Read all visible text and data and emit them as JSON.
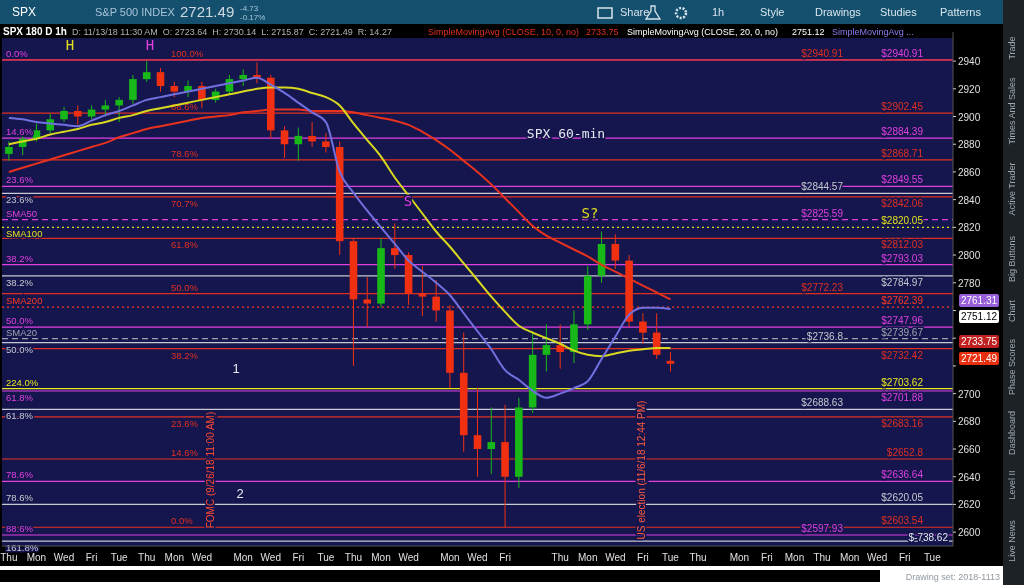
{
  "chart_data": {
    "type": "candlestick",
    "title": "SPX 180 D 1h",
    "subtitle": "D: 11/13/18 11:30 AM  O: 2723.64  H: 2730.14  L: 2715.87  C: 2721.49  R: 14.27",
    "categories": [
      "Thu",
      null,
      "Mon",
      null,
      "Wed",
      null,
      "Fri",
      null,
      "Tue",
      null,
      "Thu",
      null,
      "Mon",
      null,
      "Wed",
      null,
      null,
      "Mon",
      null,
      "Wed",
      null,
      "Fri",
      null,
      "Tue",
      null,
      "Thu",
      null,
      "Mon",
      null,
      "Wed",
      null,
      null,
      "Mon",
      null,
      "Wed",
      null,
      "Fri",
      null,
      null,
      null,
      "Thu",
      null,
      "Mon",
      null,
      "Wed",
      null,
      "Fri",
      null,
      "Tue",
      null,
      "Thu",
      null,
      null,
      "Mon",
      null,
      "Fri",
      null,
      "Mon",
      null,
      "Thu",
      null,
      "Mon",
      null,
      "Wed",
      null,
      "Fri",
      null,
      "Tue",
      null
    ],
    "ohlc": [
      [
        2873,
        2882,
        2868,
        2878
      ],
      [
        2878,
        2886,
        2872,
        2884
      ],
      [
        2884,
        2895,
        2882,
        2890
      ],
      [
        2890,
        2902,
        2888,
        2898
      ],
      [
        2898,
        2907,
        2896,
        2904
      ],
      [
        2904,
        2908,
        2894,
        2900
      ],
      [
        2900,
        2908,
        2898,
        2905
      ],
      [
        2905,
        2912,
        2900,
        2908
      ],
      [
        2908,
        2914,
        2896,
        2912
      ],
      [
        2912,
        2930,
        2909,
        2927
      ],
      [
        2927,
        2940,
        2925,
        2932
      ],
      [
        2932,
        2935,
        2918,
        2922
      ],
      [
        2922,
        2925,
        2914,
        2918
      ],
      [
        2918,
        2926,
        2914,
        2922
      ],
      [
        2922,
        2925,
        2906,
        2912
      ],
      [
        2912,
        2920,
        2910,
        2918
      ],
      [
        2918,
        2930,
        2916,
        2927
      ],
      [
        2927,
        2934,
        2922,
        2930
      ],
      [
        2930,
        2939,
        2924,
        2928
      ],
      [
        2928,
        2930,
        2884,
        2890
      ],
      [
        2890,
        2893,
        2870,
        2880
      ],
      [
        2880,
        2892,
        2868,
        2886
      ],
      [
        2886,
        2896,
        2878,
        2882
      ],
      [
        2882,
        2888,
        2874,
        2878
      ],
      [
        2878,
        2882,
        2800,
        2810
      ],
      [
        2810,
        2812,
        2720,
        2768
      ],
      [
        2768,
        2784,
        2748,
        2765
      ],
      [
        2765,
        2812,
        2762,
        2805
      ],
      [
        2805,
        2823,
        2790,
        2800
      ],
      [
        2800,
        2802,
        2764,
        2772
      ],
      [
        2772,
        2792,
        2756,
        2770
      ],
      [
        2770,
        2782,
        2752,
        2760
      ],
      [
        2760,
        2764,
        2704,
        2715
      ],
      [
        2715,
        2744,
        2658,
        2670
      ],
      [
        2670,
        2704,
        2640,
        2660
      ],
      [
        2660,
        2690,
        2642,
        2665
      ],
      [
        2665,
        2692,
        2603.5,
        2640
      ],
      [
        2640,
        2697,
        2632,
        2690
      ],
      [
        2690,
        2745,
        2686,
        2728
      ],
      [
        2728,
        2750,
        2716,
        2735
      ],
      [
        2735,
        2750,
        2718,
        2730
      ],
      [
        2730,
        2760,
        2722,
        2750
      ],
      [
        2750,
        2792,
        2746,
        2785
      ],
      [
        2785,
        2817,
        2780,
        2808
      ],
      [
        2808,
        2815,
        2790,
        2796
      ],
      [
        2796,
        2800,
        2748,
        2752
      ],
      [
        2752,
        2758,
        2736,
        2744
      ],
      [
        2744,
        2758,
        2725,
        2728
      ],
      [
        2723.64,
        2730.14,
        2715.87,
        2721.49
      ],
      null,
      null,
      null,
      null,
      null,
      null,
      null,
      null,
      null,
      null,
      null,
      null,
      null,
      null,
      null,
      null,
      null,
      null,
      null,
      null
    ],
    "series": [
      {
        "type": "line",
        "color": "#e8321e",
        "values": [
          2860,
          2863,
          2866,
          2869,
          2872,
          2875,
          2878,
          2881,
          2885,
          2888,
          2891,
          2893,
          2895,
          2897,
          2899,
          2900,
          2901,
          2903,
          2904,
          2905,
          2905,
          2905,
          2904,
          2904,
          2904,
          2903,
          2901,
          2899,
          2897,
          2894,
          2889,
          2883,
          2876,
          2868,
          2860,
          2851,
          2841,
          2831,
          2821,
          2814,
          2809,
          2804,
          2799,
          2793,
          2788,
          2783,
          2778,
          2773,
          2768,
          null,
          null,
          null,
          null,
          null,
          null,
          null,
          null,
          null,
          null,
          null,
          null,
          null,
          null,
          null,
          null,
          null,
          null,
          null,
          null
        ]
      },
      {
        "type": "line",
        "color": "#d8d820",
        "values": [
          2880,
          2882,
          2884,
          2887,
          2889,
          2891,
          2894,
          2896,
          2899,
          2901,
          2904,
          2906,
          2908,
          2910,
          2912,
          2914,
          2916,
          2918,
          2920,
          2921,
          2921,
          2920,
          2917,
          2914,
          2908,
          2895,
          2883,
          2871,
          2856,
          2843,
          2830,
          2817,
          2806,
          2794,
          2782,
          2770,
          2759,
          2749,
          2744,
          2740,
          2736,
          2731,
          2728,
          2727,
          2729,
          2731,
          2732,
          2733,
          2733,
          null,
          null,
          null,
          null,
          null,
          null,
          null,
          null,
          null,
          null,
          null,
          null,
          null,
          null,
          null,
          null,
          null,
          null,
          null,
          null
        ]
      },
      {
        "type": "line",
        "color": "#7070e0",
        "values": [
          2899,
          2898,
          2896,
          2895,
          2894,
          2893,
          2897,
          2901,
          2904,
          2908,
          2912,
          2914,
          2916,
          2918,
          2920,
          2922,
          2924,
          2926,
          2928,
          2923,
          2917,
          2910,
          2903,
          2896,
          2860,
          2845,
          2832,
          2820,
          2808,
          2796,
          2788,
          2780,
          2771,
          2758,
          2745,
          2732,
          2717,
          2710,
          2702,
          2697,
          2700,
          2704,
          2709,
          2725,
          2741,
          2757,
          2762,
          2762,
          2761,
          null,
          null,
          null,
          null,
          null,
          null,
          null,
          null,
          null,
          null,
          null,
          null,
          null,
          null,
          null,
          null,
          null,
          null,
          null,
          null
        ]
      }
    ],
    "ylim": [
      2590,
      2961
    ],
    "yticks": [
      2600,
      2620,
      2640,
      2660,
      2680,
      2700,
      {
        "value": 2720,
        "label": null
      },
      {
        "value": 2740,
        "label": null
      },
      {
        "value": 2760,
        "label": null
      },
      2780,
      2800,
      2820,
      2840,
      2860,
      2880,
      2900,
      2920,
      2940
    ],
    "grid": false,
    "ref_lines": [
      {
        "axis": "y",
        "value": 2940.91,
        "label": "$2940.91",
        "color": "#e040e0"
      },
      {
        "axis": "y",
        "value": 2940.91,
        "label": "$2940.91",
        "color": "#e03020"
      },
      {
        "axis": "y",
        "value": 2902.45,
        "label": "$2902.45",
        "color": "#e03020"
      },
      {
        "axis": "y",
        "value": 2884.39,
        "label": "$2884.39",
        "color": "#e040e0"
      },
      {
        "axis": "y",
        "value": 2868.71,
        "label": "$2868.71",
        "color": "#e03020"
      },
      {
        "axis": "y",
        "value": 2849.55,
        "label": "$2849.55",
        "color": "#e040e0"
      },
      {
        "axis": "y",
        "value": 2844.57,
        "label": "$2844.57",
        "color": "#c8c8d0"
      },
      {
        "axis": "y",
        "value": 2842.06,
        "label": "$2842.06",
        "color": "#e03020"
      },
      {
        "axis": "y",
        "value": 2825.59,
        "label": "$2825.59",
        "color": "#e040e0",
        "line_style": "dashed"
      },
      {
        "axis": "y",
        "value": 2820.05,
        "label": "$2820.05",
        "color": "#e0e020",
        "line_style": "dotted"
      },
      {
        "axis": "y",
        "value": 2812.03,
        "label": "$2812.03",
        "color": "#e03020"
      },
      {
        "axis": "y",
        "value": 2793.03,
        "label": "$2793.03",
        "color": "#e040e0"
      },
      {
        "axis": "y",
        "value": 2784.97,
        "label": "$2784.97",
        "color": "#c8c8d0"
      },
      {
        "axis": "y",
        "value": 2772.23,
        "label": "$2772.23",
        "color": "#e03020"
      },
      {
        "axis": "y",
        "value": 2762.39,
        "label": "$2762.39",
        "color": "#ff3a20",
        "line_style": "dotted"
      },
      {
        "axis": "y",
        "value": 2747.96,
        "label": "$2747.96",
        "color": "#e040e0"
      },
      {
        "axis": "y",
        "value": 2739.67,
        "label": "$2739.67",
        "color": "#a0a0b0",
        "line_style": "dashed"
      },
      {
        "axis": "y",
        "value": 2736.8,
        "label": "$2736.8",
        "color": "#c8c8d0"
      },
      {
        "axis": "y",
        "value": 2732.42,
        "label": "$2732.42",
        "color": "#e03020"
      },
      {
        "axis": "y",
        "value": 2703.62,
        "label": "$2703.62",
        "color": "#e8e820"
      },
      {
        "axis": "y",
        "value": 2701.88,
        "label": "$2701.88",
        "color": "#e040e0"
      },
      {
        "axis": "y",
        "value": 2688.63,
        "label": "$2688.63",
        "color": "#c8c8d0"
      },
      {
        "axis": "y",
        "value": 2683.16,
        "label": "$2683.16",
        "color": "#e03020"
      },
      {
        "axis": "y",
        "value": 2652.8,
        "label": "$2652.8",
        "color": "#e03020"
      },
      {
        "axis": "y",
        "value": 2636.64,
        "label": "$2636.64",
        "color": "#e040e0"
      },
      {
        "axis": "y",
        "value": 2620.05,
        "label": "$2620.05",
        "color": "#c8c8d0"
      },
      {
        "axis": "y",
        "value": 2603.54,
        "label": "$2603.54",
        "color": "#e03020"
      },
      {
        "axis": "y",
        "value": 2597.93,
        "label": "$2597.93",
        "color": "#e040e0"
      },
      {
        "axis": "y",
        "value": 2593.5,
        "color": "#c8c8d0"
      }
    ],
    "annotations": [
      "SPX",
      "S&P 500 INDEX",
      "2721.49",
      "-4.73",
      "-0.17%",
      "Share",
      "1h",
      "Style",
      "Drawings",
      "Studies",
      "Patterns",
      "SimpleMovingAvg (CLOSE, 10, 0, no)",
      "2733.75",
      "SimpleMovingAvg (CLOSE, 20, 0, no)",
      "2751.12",
      "SimpleMovingAvg ...",
      "Trade",
      "Times And Sales",
      "Active Trader",
      "Big Buttons",
      "Chart",
      "Phase Scores",
      "Dashboard",
      "Level II",
      "Live News",
      "Drawing set: 2018-1113",
      "2761.31",
      "2751.12",
      "2733.75",
      "2721.49",
      "$-738.62",
      "H",
      "H",
      "S",
      "S?",
      "1",
      "2",
      "SPX 60-min",
      "FOMC (9/26/18 11:00 AM)",
      "US election (11/6/18 12:44 PM)",
      {
        "text": "0.0%",
        "y": 2940.91
      },
      {
        "text": "14.6%",
        "y": 2884.39
      },
      {
        "text": "23.6%",
        "y": 2849.55
      },
      {
        "text": "23.6%",
        "y": 2844.57
      },
      {
        "text": "SMA50",
        "y": 2825.59
      },
      {
        "text": "SMA100",
        "y": 2820.05
      },
      {
        "text": "38.2%",
        "y": 2793.03
      },
      {
        "text": "38.2%",
        "y": 2784.97
      },
      {
        "text": "SMA200",
        "y": 2762.39
      },
      {
        "text": "50.0%",
        "y": 2747.96
      },
      {
        "text": "SMA20",
        "y": 2739.67
      },
      {
        "text": "50.0%",
        "y": 2736.8
      },
      {
        "text": "224.0%",
        "y": 2703.62
      },
      {
        "text": "61.8%",
        "y": 2701.88
      },
      {
        "text": "61.8%",
        "y": 2688.63
      },
      {
        "text": "78.6%",
        "y": 2636.64
      },
      {
        "text": "78.6%",
        "y": 2620.05
      },
      {
        "text": "88.6%",
        "y": 2597.93
      },
      {
        "text": "161.8%",
        "y": 2593.5
      },
      {
        "text": "100.0%",
        "y": 2940.91
      },
      {
        "text": "88.6%",
        "y": 2902.45
      },
      {
        "text": "78.6%",
        "y": 2868.71
      },
      {
        "text": "70.7%",
        "y": 2842.06
      },
      {
        "text": "61.8%",
        "y": 2812.03
      },
      {
        "text": "50.0%",
        "y": 2772.23
      },
      {
        "text": "38.2%",
        "y": 2732.42
      },
      {
        "text": "23.6%",
        "y": 2683.16
      },
      {
        "text": "14.6%",
        "y": 2652.8
      },
      {
        "text": "0.0%",
        "y": 2603.54
      }
    ]
  }
}
